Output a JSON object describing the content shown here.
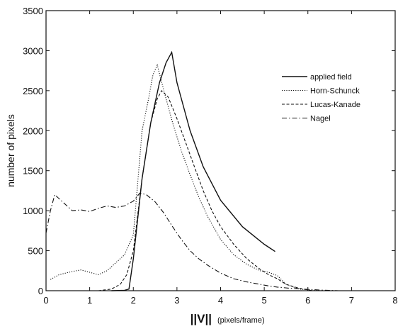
{
  "chart_data": {
    "type": "line",
    "title": "",
    "xlabel": "||V||",
    "xlabel_unit": "(pixels/frame)",
    "ylabel": "number of pixels",
    "xlim": [
      0,
      8
    ],
    "ylim": [
      0,
      3500
    ],
    "xticks": [
      "0",
      "1",
      "2",
      "3",
      "4",
      "5",
      "6",
      "7",
      "8"
    ],
    "yticks": [
      "0",
      "500",
      "1000",
      "1500",
      "2000",
      "2500",
      "3000",
      "3500"
    ],
    "grid": false,
    "legend_position": "top-right",
    "series": [
      {
        "name": "applied field",
        "style": "solid",
        "x": [
          1.5,
          1.8,
          1.9,
          2.0,
          2.2,
          2.4,
          2.6,
          2.75,
          2.88,
          3.0,
          3.3,
          3.6,
          4.0,
          4.5,
          5.0,
          5.25
        ],
        "y": [
          0,
          5,
          20,
          400,
          1400,
          2100,
          2600,
          2850,
          2980,
          2600,
          2000,
          1550,
          1130,
          800,
          580,
          490
        ]
      },
      {
        "name": "Horn-Schunck",
        "style": "dotted",
        "x": [
          0.1,
          0.3,
          0.6,
          0.8,
          1.0,
          1.2,
          1.4,
          1.6,
          1.8,
          2.0,
          2.2,
          2.35,
          2.45,
          2.55,
          2.7,
          2.9,
          3.1,
          3.3,
          3.5,
          3.7,
          4.0,
          4.3,
          4.6,
          4.9,
          5.1,
          5.3,
          5.5,
          5.8,
          6.0,
          6.3
        ],
        "y": [
          140,
          200,
          240,
          260,
          230,
          200,
          250,
          350,
          450,
          700,
          2000,
          2400,
          2700,
          2820,
          2500,
          2100,
          1750,
          1450,
          1170,
          930,
          640,
          450,
          330,
          250,
          230,
          190,
          80,
          20,
          10,
          0
        ]
      },
      {
        "name": "Lucas-Kanade",
        "style": "dashed",
        "x": [
          1.2,
          1.5,
          1.7,
          1.85,
          2.0,
          2.2,
          2.4,
          2.55,
          2.65,
          2.8,
          3.0,
          3.2,
          3.4,
          3.6,
          3.8,
          4.0,
          4.3,
          4.6,
          4.9,
          5.1,
          5.3,
          5.5,
          5.8,
          6.1
        ],
        "y": [
          0,
          20,
          80,
          200,
          500,
          1400,
          2100,
          2400,
          2500,
          2420,
          2150,
          1850,
          1550,
          1250,
          1000,
          800,
          580,
          400,
          270,
          200,
          150,
          80,
          30,
          0
        ]
      },
      {
        "name": "Nagel",
        "style": "dashdot",
        "x": [
          0.0,
          0.1,
          0.2,
          0.4,
          0.6,
          0.8,
          1.0,
          1.2,
          1.4,
          1.6,
          1.8,
          2.0,
          2.15,
          2.3,
          2.5,
          2.7,
          2.9,
          3.1,
          3.3,
          3.5,
          3.7,
          4.0,
          4.3,
          4.6,
          4.9,
          5.1,
          5.3,
          5.6,
          5.9,
          6.3,
          6.7
        ],
        "y": [
          720,
          1000,
          1200,
          1100,
          1000,
          1010,
          990,
          1030,
          1060,
          1040,
          1060,
          1120,
          1220,
          1200,
          1110,
          970,
          800,
          640,
          500,
          400,
          320,
          220,
          150,
          110,
          80,
          60,
          45,
          30,
          20,
          8,
          0
        ]
      }
    ]
  }
}
